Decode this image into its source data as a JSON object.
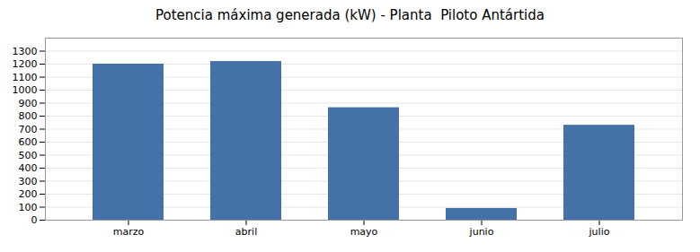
{
  "chart_data": {
    "type": "bar",
    "title": "Potencia máxima generada (kW) - Planta  Piloto Antártida",
    "categories": [
      "marzo",
      "abril",
      "mayo",
      "junio",
      "julio"
    ],
    "values": [
      1200,
      1220,
      865,
      90,
      730
    ],
    "color": "#4472a8",
    "ylim": [
      0,
      1400
    ],
    "yticks": [
      0,
      100,
      200,
      300,
      400,
      500,
      600,
      700,
      800,
      900,
      1000,
      1100,
      1200,
      1300
    ],
    "grid": true
  }
}
